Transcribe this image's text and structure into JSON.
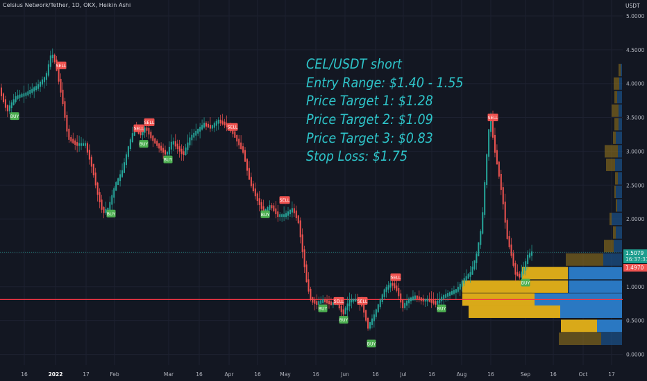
{
  "header": {
    "symbol_title": "Celsius Network/Tether, 1D, OKX, Heikin Ashi",
    "currency": "USDT"
  },
  "annotation": {
    "lines": [
      "CEL/USDT short",
      "Entry Range: $1.40 - 1.55",
      "Price Target 1: $1.28",
      "Price Target 2: $1.09",
      "Price Target 3: $0.83",
      "Stop Loss: $1.75"
    ]
  },
  "price_tags": {
    "current_price": "1.5079",
    "countdown": "16:37:31",
    "line_price": "1.4970"
  },
  "colors": {
    "background": "#131722",
    "up": "#26a69a",
    "down": "#ef5350",
    "annotation": "#2ec4c9",
    "buy_label": "#4caf50",
    "sell_label": "#ef5350",
    "horizontal_line": "#f23645",
    "volume_profile_up": "#2962ff",
    "volume_profile_down": "#ffc107"
  },
  "chart_data": {
    "type": "candlestick",
    "title": "Celsius Network/Tether, 1D, OKX, Heikin Ashi",
    "ylabel": "USDT",
    "y_ticks": [
      0.0,
      0.5,
      1.0,
      1.5,
      2.0,
      2.5,
      3.0,
      3.5,
      4.0,
      4.5,
      5.0
    ],
    "y_tick_labels": [
      "0.0000",
      "0.5000",
      "1.0000",
      "1.5000",
      "2.0000",
      "2.5000",
      "3.0000",
      "3.5000",
      "4.0000",
      "4.5000",
      "5.0000"
    ],
    "x_tick_labels": [
      "16",
      "2022",
      "17",
      "Feb",
      "Mar",
      "16",
      "Apr",
      "16",
      "May",
      "16",
      "Jun",
      "16",
      "Jul",
      "16",
      "Aug",
      "16",
      "Sep",
      "16",
      "Oct",
      "17"
    ],
    "ylim": [
      -0.1,
      5.2
    ],
    "price_path": [
      [
        0,
        3.95
      ],
      [
        12,
        3.6
      ],
      [
        25,
        3.8
      ],
      [
        40,
        3.85
      ],
      [
        55,
        3.95
      ],
      [
        68,
        4.1
      ],
      [
        76,
        4.45
      ],
      [
        82,
        4.3
      ],
      [
        92,
        3.75
      ],
      [
        100,
        3.2
      ],
      [
        112,
        3.1
      ],
      [
        125,
        3.1
      ],
      [
        135,
        2.75
      ],
      [
        142,
        2.4
      ],
      [
        150,
        2.1
      ],
      [
        158,
        2.15
      ],
      [
        168,
        2.5
      ],
      [
        178,
        2.7
      ],
      [
        188,
        3.1
      ],
      [
        196,
        3.35
      ],
      [
        204,
        3.25
      ],
      [
        212,
        3.35
      ],
      [
        220,
        3.2
      ],
      [
        232,
        3.05
      ],
      [
        242,
        2.95
      ],
      [
        250,
        3.15
      ],
      [
        258,
        3.05
      ],
      [
        266,
        2.95
      ],
      [
        276,
        3.2
      ],
      [
        286,
        3.3
      ],
      [
        296,
        3.4
      ],
      [
        306,
        3.35
      ],
      [
        316,
        3.45
      ],
      [
        326,
        3.4
      ],
      [
        336,
        3.3
      ],
      [
        344,
        3.15
      ],
      [
        352,
        3.0
      ],
      [
        362,
        2.55
      ],
      [
        372,
        2.3
      ],
      [
        382,
        2.1
      ],
      [
        392,
        2.2
      ],
      [
        402,
        2.05
      ],
      [
        412,
        2.05
      ],
      [
        424,
        2.15
      ],
      [
        432,
        1.95
      ],
      [
        438,
        1.5
      ],
      [
        444,
        1.05
      ],
      [
        450,
        0.8
      ],
      [
        458,
        0.75
      ],
      [
        468,
        0.8
      ],
      [
        478,
        0.75
      ],
      [
        488,
        0.75
      ],
      [
        496,
        0.6
      ],
      [
        506,
        0.8
      ],
      [
        516,
        0.8
      ],
      [
        524,
        0.72
      ],
      [
        532,
        0.4
      ],
      [
        540,
        0.55
      ],
      [
        548,
        0.75
      ],
      [
        556,
        0.95
      ],
      [
        566,
        1.05
      ],
      [
        574,
        0.95
      ],
      [
        582,
        0.7
      ],
      [
        590,
        0.8
      ],
      [
        600,
        0.85
      ],
      [
        610,
        0.8
      ],
      [
        620,
        0.8
      ],
      [
        630,
        0.75
      ],
      [
        640,
        0.85
      ],
      [
        650,
        0.9
      ],
      [
        660,
        0.95
      ],
      [
        670,
        1.1
      ],
      [
        680,
        1.2
      ],
      [
        688,
        1.45
      ],
      [
        696,
        1.9
      ],
      [
        702,
        2.8
      ],
      [
        708,
        3.55
      ],
      [
        714,
        3.05
      ],
      [
        720,
        2.7
      ],
      [
        726,
        2.3
      ],
      [
        732,
        1.75
      ],
      [
        738,
        1.5
      ],
      [
        744,
        1.2
      ],
      [
        750,
        1.15
      ],
      [
        756,
        1.25
      ],
      [
        762,
        1.45
      ],
      [
        768,
        1.5
      ]
    ],
    "signals": [
      {
        "label": "BUY",
        "x": 21,
        "price": 3.52
      },
      {
        "label": "SELL",
        "x": 88,
        "price": 4.27
      },
      {
        "label": "BUY",
        "x": 160,
        "price": 2.08
      },
      {
        "label": "SELL",
        "x": 200,
        "price": 3.34
      },
      {
        "label": "SELL",
        "x": 215,
        "price": 3.43
      },
      {
        "label": "BUY",
        "x": 207,
        "price": 3.11
      },
      {
        "label": "BUY",
        "x": 242,
        "price": 2.88
      },
      {
        "label": "SELL",
        "x": 335,
        "price": 3.36
      },
      {
        "label": "SELL",
        "x": 410,
        "price": 2.28
      },
      {
        "label": "BUY",
        "x": 382,
        "price": 2.07
      },
      {
        "label": "BUY",
        "x": 465,
        "price": 0.68
      },
      {
        "label": "SELL",
        "x": 488,
        "price": 0.79
      },
      {
        "label": "BUY",
        "x": 495,
        "price": 0.51
      },
      {
        "label": "SELL",
        "x": 522,
        "price": 0.79
      },
      {
        "label": "BUY",
        "x": 535,
        "price": 0.16
      },
      {
        "label": "SELL",
        "x": 570,
        "price": 1.14
      },
      {
        "label": "BUY",
        "x": 636,
        "price": 0.68
      },
      {
        "label": "SELL",
        "x": 710,
        "price": 3.5
      },
      {
        "label": "BUY",
        "x": 757,
        "price": 1.06
      }
    ],
    "horizontal_line": 0.81,
    "current_price": 1.5079,
    "volume_profile": [
      {
        "price": 0.23,
        "up": 30,
        "down": 61
      },
      {
        "price": 0.42,
        "up": 34,
        "down": 54
      },
      {
        "price": 0.63,
        "up": 27,
        "down": 193
      },
      {
        "price": 0.81,
        "up": 127,
        "down": 103
      },
      {
        "price": 1.0,
        "up": 78,
        "down": 52
      },
      {
        "price": 1.2,
        "up": 78,
        "down": 60
      },
      {
        "price": 1.4,
        "up": 27,
        "down": 54
      },
      {
        "price": 1.6,
        "up": 12,
        "down": 14
      },
      {
        "price": 1.8,
        "up": 9,
        "down": 4
      },
      {
        "price": 2.0,
        "up": 15,
        "down": 3
      },
      {
        "price": 2.2,
        "up": 7,
        "down": 2
      },
      {
        "price": 2.4,
        "up": 9,
        "down": 2
      },
      {
        "price": 2.6,
        "up": 6,
        "down": 4
      },
      {
        "price": 2.8,
        "up": 10,
        "down": 13
      },
      {
        "price": 3.0,
        "up": 6,
        "down": 19
      },
      {
        "price": 3.2,
        "up": 9,
        "down": 4
      },
      {
        "price": 3.4,
        "up": 5,
        "down": 6
      },
      {
        "price": 3.6,
        "up": 5,
        "down": 10
      },
      {
        "price": 3.8,
        "up": 7,
        "down": 4
      },
      {
        "price": 4.0,
        "up": 4,
        "down": 8
      },
      {
        "price": 4.2,
        "up": 2,
        "down": 3
      }
    ]
  }
}
